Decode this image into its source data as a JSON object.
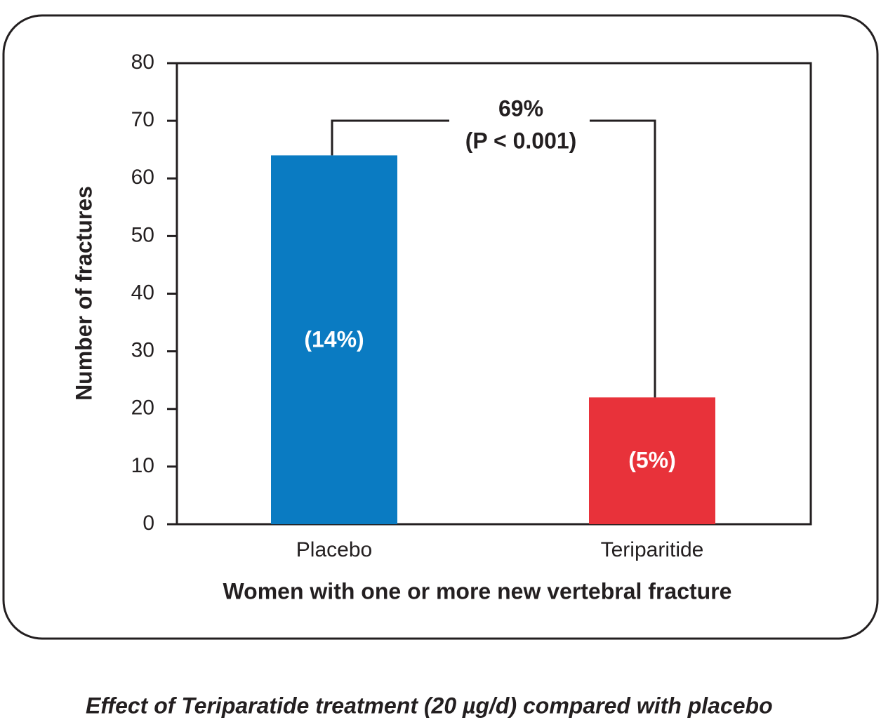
{
  "chart_data": {
    "type": "bar",
    "y_label": "Number of fractures",
    "x_label": "Women with one or more new vertebral fracture",
    "categories": [
      "Placebo",
      "Teriparitide"
    ],
    "values": [
      64,
      22
    ],
    "colors": [
      "#0a7bc2",
      "#e8323a"
    ],
    "bar_annotations": [
      "(14%)",
      "(5%)"
    ],
    "comparison": {
      "label": "69%",
      "p_value": "(P < 0.001)"
    },
    "ylim": [
      0,
      80
    ],
    "yticks": [
      0,
      10,
      20,
      30,
      40,
      50,
      60,
      70,
      80
    ],
    "caption": "Effect of Teriparatide treatment (20 µg/d) compared with placebo"
  }
}
